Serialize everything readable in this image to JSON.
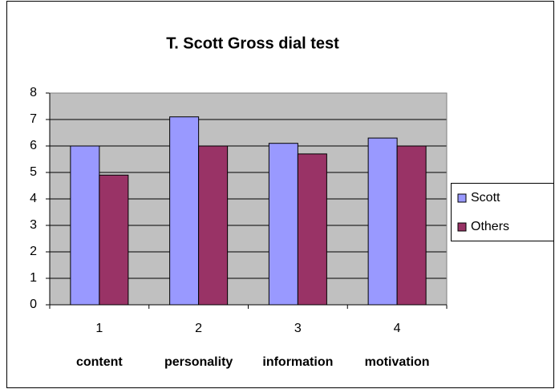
{
  "chart_data": {
    "type": "bar",
    "title": "T. Scott Gross dial test",
    "categories": [
      "1",
      "2",
      "3",
      "4"
    ],
    "category_descriptions": [
      "content",
      "personality",
      "information",
      "motivation"
    ],
    "series": [
      {
        "name": "Scott",
        "color": "#9999ff",
        "values": [
          6.0,
          7.1,
          6.1,
          6.3
        ]
      },
      {
        "name": "Others",
        "color": "#993366",
        "values": [
          4.9,
          6.0,
          5.7,
          6.0
        ]
      }
    ],
    "ylim": [
      0,
      8
    ],
    "yticks": [
      0,
      1,
      2,
      3,
      4,
      5,
      6,
      7,
      8
    ],
    "grid": true,
    "plot_background": "#c0c0c0",
    "legend": "right"
  }
}
